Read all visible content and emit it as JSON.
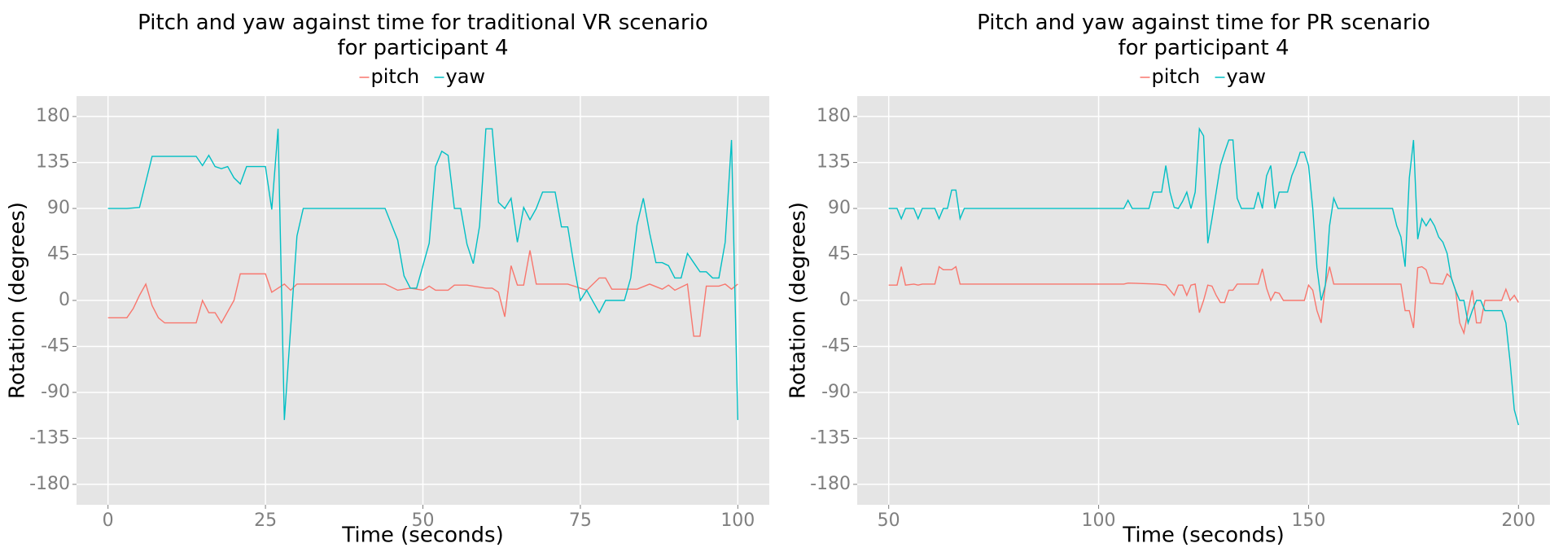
{
  "chart_data": [
    {
      "type": "line",
      "title": "Pitch and yaw against time for traditional VR scenario\nfor participant 4",
      "x_label": "Time (seconds)",
      "y_label": "Rotation (degrees)",
      "xlim": [
        -5,
        105
      ],
      "xticks": [
        0,
        25,
        50,
        75,
        100
      ],
      "ylim": [
        -200,
        200
      ],
      "yticks": [
        -180,
        -135,
        -90,
        -45,
        0,
        45,
        90,
        135,
        180
      ],
      "grid": true,
      "legend": "top",
      "series": [
        {
          "name": "pitch",
          "color": "#F8766D",
          "x": [
            0,
            3,
            4,
            5,
            6,
            7,
            8,
            9,
            14,
            15,
            16,
            17,
            18,
            20,
            21,
            25,
            26,
            28,
            29,
            30,
            44,
            46,
            48,
            50,
            51,
            52,
            54,
            55,
            57,
            60,
            61,
            62,
            63,
            64,
            65,
            66,
            67,
            68,
            73,
            76,
            78,
            79,
            80,
            84,
            86,
            88,
            89,
            90,
            92,
            93,
            94,
            95,
            97,
            98,
            99,
            100
          ],
          "values": [
            -17,
            -17,
            -8,
            5,
            16,
            -5,
            -17,
            -22,
            -22,
            0,
            -12,
            -12,
            -22,
            0,
            26,
            26,
            8,
            16,
            10,
            16,
            16,
            10,
            12,
            10,
            14,
            10,
            10,
            15,
            15,
            12,
            12,
            8,
            -16,
            34,
            15,
            15,
            49,
            16,
            16,
            10,
            22,
            22,
            11,
            11,
            16,
            11,
            15,
            10,
            16,
            -35,
            -35,
            14,
            14,
            16,
            11,
            16
          ]
        },
        {
          "name": "yaw",
          "color": "#00BFC4",
          "x": [
            0,
            3,
            5,
            7,
            14,
            15,
            16,
            17,
            18,
            19,
            20,
            21,
            22,
            25,
            26,
            27,
            28,
            30,
            31,
            44,
            46,
            47,
            48,
            49,
            51,
            52,
            53,
            54,
            55,
            56,
            57,
            58,
            59,
            60,
            61,
            62,
            63,
            64,
            65,
            66,
            67,
            68,
            69,
            71,
            72,
            73,
            74,
            75,
            76,
            78,
            79,
            82,
            83,
            84,
            85,
            86,
            87,
            88,
            89,
            90,
            91,
            92,
            93,
            94,
            95,
            96,
            97,
            98,
            99,
            100
          ],
          "values": [
            90,
            90,
            91,
            141,
            141,
            132,
            142,
            131,
            129,
            131,
            120,
            114,
            131,
            131,
            89,
            168,
            -117,
            63,
            90,
            90,
            59,
            24,
            12,
            12,
            56,
            131,
            146,
            142,
            90,
            90,
            55,
            36,
            73,
            168,
            168,
            96,
            90,
            100,
            57,
            91,
            79,
            90,
            106,
            106,
            72,
            72,
            34,
            0,
            10,
            -12,
            0,
            0,
            22,
            74,
            100,
            66,
            37,
            37,
            34,
            22,
            22,
            46,
            37,
            28,
            28,
            22,
            22,
            57,
            157,
            -117
          ]
        }
      ]
    },
    {
      "type": "line",
      "title": "Pitch and yaw against time for PR scenario\nfor participant 4",
      "x_label": "Time (seconds)",
      "y_label": "Rotation (degrees)",
      "xlim": [
        42.5,
        207.5
      ],
      "xticks": [
        50,
        100,
        150,
        200
      ],
      "ylim": [
        -200,
        200
      ],
      "yticks": [
        -180,
        -135,
        -90,
        -45,
        0,
        45,
        90,
        135,
        180
      ],
      "grid": true,
      "legend": "top",
      "series": [
        {
          "name": "pitch",
          "color": "#F8766D",
          "x": [
            50,
            52,
            53,
            54,
            56,
            57,
            58,
            61,
            62,
            63,
            65,
            66,
            67,
            106,
            107,
            114,
            116,
            117,
            118,
            119,
            120,
            121,
            122,
            123,
            124,
            125,
            126,
            127,
            128,
            129,
            130,
            131,
            132,
            133,
            138,
            139,
            140,
            141,
            142,
            143,
            144,
            149,
            150,
            151,
            152,
            153,
            154,
            155,
            156,
            172,
            173,
            174,
            175,
            176,
            177,
            178,
            179,
            182,
            183,
            184,
            185,
            186,
            187,
            188,
            189,
            190,
            191,
            192,
            196,
            197,
            198,
            199,
            200
          ],
          "values": [
            15,
            15,
            33,
            15,
            16,
            15,
            16,
            16,
            33,
            30,
            30,
            33,
            16,
            16,
            17,
            16,
            15,
            10,
            5,
            15,
            15,
            5,
            15,
            16,
            -12,
            0,
            15,
            14,
            5,
            -2,
            -2,
            10,
            10,
            16,
            16,
            31,
            12,
            0,
            8,
            7,
            0,
            0,
            15,
            10,
            -10,
            -22,
            15,
            33,
            16,
            16,
            -10,
            -10,
            -27,
            32,
            33,
            30,
            17,
            16,
            26,
            22,
            10,
            -22,
            -32,
            -10,
            10,
            -22,
            -22,
            0,
            0,
            11,
            0,
            5,
            -2
          ]
        },
        {
          "name": "yaw",
          "color": "#00BFC4",
          "x": [
            50,
            52,
            53,
            54,
            56,
            57,
            58,
            61,
            62,
            63,
            64,
            65,
            66,
            67,
            68,
            106,
            107,
            108,
            112,
            113,
            115,
            116,
            117,
            118,
            119,
            120,
            121,
            122,
            123,
            124,
            125,
            126,
            127,
            128,
            129,
            130,
            131,
            132,
            133,
            134,
            137,
            138,
            139,
            140,
            141,
            142,
            143,
            145,
            146,
            147,
            148,
            149,
            150,
            151,
            152,
            153,
            154,
            155,
            156,
            157,
            170,
            171,
            172,
            173,
            174,
            175,
            176,
            177,
            178,
            179,
            180,
            181,
            182,
            183,
            184,
            185,
            186,
            187,
            188,
            189,
            190,
            191,
            192,
            196,
            197,
            198,
            199,
            200
          ],
          "values": [
            90,
            90,
            80,
            90,
            90,
            80,
            90,
            90,
            80,
            90,
            90,
            108,
            108,
            80,
            90,
            90,
            98,
            90,
            90,
            106,
            106,
            132,
            106,
            91,
            90,
            97,
            106,
            90,
            106,
            168,
            161,
            56,
            80,
            106,
            132,
            145,
            157,
            157,
            100,
            90,
            90,
            106,
            90,
            122,
            132,
            90,
            106,
            106,
            122,
            132,
            145,
            145,
            132,
            90,
            32,
            0,
            15,
            73,
            100,
            90,
            90,
            73,
            62,
            33,
            120,
            157,
            60,
            80,
            73,
            80,
            73,
            62,
            57,
            46,
            22,
            10,
            0,
            0,
            -22,
            -10,
            0,
            0,
            -10,
            -10,
            -22,
            -60,
            -107,
            -122
          ]
        }
      ]
    }
  ]
}
